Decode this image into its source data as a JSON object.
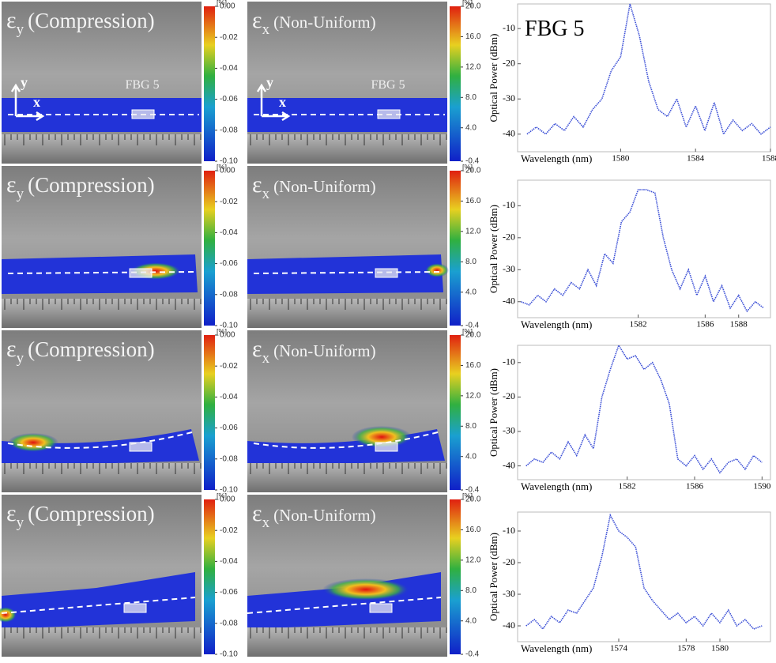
{
  "rows": [
    {
      "left": {
        "symbol": "ε",
        "subscript": "y",
        "label": "(Compression)",
        "fbg": "FBG 5",
        "axis_y": "y",
        "axis_x": "x",
        "colorbar": {
          "unit": "[%]",
          "ticks": [
            {
              "value": 0,
              "label": "0.00"
            },
            -0.02,
            -0.04,
            -0.06,
            -0.08,
            {
              "value": -0.1,
              "label": "-0.10"
            }
          ]
        }
      },
      "right": {
        "symbol": "ε",
        "subscript": "x",
        "label": "(Non-Uniform)",
        "fbg": "FBG 5",
        "axis_y": "y",
        "axis_x": "x",
        "colorbar": {
          "unit": "[%]",
          "ticks": [
            {
              "value": 20,
              "label": "20.0"
            },
            {
              "value": 16,
              "label": "16.0"
            },
            {
              "value": 12,
              "label": "12.0"
            },
            {
              "value": 8,
              "label": "8.0"
            },
            {
              "value": 4,
              "label": "4.0"
            },
            -0.4
          ]
        }
      }
    },
    {
      "left": {
        "symbol": "ε",
        "subscript": "y",
        "label": "(Compression)",
        "colorbar": {
          "unit": "[%]",
          "ticks": [
            {
              "value": 0,
              "label": "0.00"
            },
            -0.02,
            -0.04,
            -0.06,
            -0.08,
            {
              "value": -0.1,
              "label": "-0.10"
            }
          ]
        }
      },
      "right": {
        "symbol": "ε",
        "subscript": "x",
        "label": "(Non-Uniform)",
        "colorbar": {
          "unit": "[%]",
          "ticks": [
            {
              "value": 20,
              "label": "20.0"
            },
            {
              "value": 16,
              "label": "16.0"
            },
            {
              "value": 12,
              "label": "12.0"
            },
            {
              "value": 8,
              "label": "8.0"
            },
            {
              "value": 4,
              "label": "4.0"
            },
            -0.4
          ]
        }
      }
    },
    {
      "left": {
        "symbol": "ε",
        "subscript": "y",
        "label": "(Compression)",
        "colorbar": {
          "unit": "[%]",
          "ticks": [
            {
              "value": 0,
              "label": "0.00"
            },
            -0.02,
            -0.04,
            -0.06,
            -0.08,
            {
              "value": -0.1,
              "label": "-0.10"
            }
          ]
        }
      },
      "right": {
        "symbol": "ε",
        "subscript": "x",
        "label": "(Non-Uniform)",
        "colorbar": {
          "unit": "[%]",
          "ticks": [
            {
              "value": 20,
              "label": "20.0"
            },
            {
              "value": 16,
              "label": "16.0"
            },
            {
              "value": 12,
              "label": "12.0"
            },
            {
              "value": 8,
              "label": "8.0"
            },
            {
              "value": 4,
              "label": "4.0"
            },
            -0.4
          ]
        }
      }
    },
    {
      "left": {
        "symbol": "ε",
        "subscript": "y",
        "label": "(Compression)",
        "colorbar": {
          "unit": "[%]",
          "ticks": [
            {
              "value": 0,
              "label": "0.00"
            },
            -0.02,
            -0.04,
            -0.06,
            -0.08,
            {
              "value": -0.1,
              "label": "-0.10"
            }
          ]
        }
      },
      "right": {
        "symbol": "ε",
        "subscript": "x",
        "label": "(Non-Uniform)",
        "colorbar": {
          "unit": "[%]",
          "ticks": [
            {
              "value": 20,
              "label": "20.0"
            },
            {
              "value": 16,
              "label": "16.0"
            },
            {
              "value": 12,
              "label": "12.0"
            },
            {
              "value": 8,
              "label": "8.0"
            },
            {
              "value": 4,
              "label": "4.0"
            },
            -0.4
          ]
        }
      }
    }
  ],
  "chart_data": [
    {
      "type": "line",
      "title": "FBG 5",
      "x_label": "Wavelength (nm)",
      "y_label": "Optical Power (dBm)",
      "color": "#3b4fd6",
      "x": [
        1575,
        1575.5,
        1576,
        1576.5,
        1577,
        1577.5,
        1578,
        1578.5,
        1579,
        1579.5,
        1580,
        1580.5,
        1581,
        1581.5,
        1582,
        1582.5,
        1583,
        1583.5,
        1584,
        1584.5,
        1585,
        1585.5,
        1586,
        1586.5,
        1587,
        1587.5,
        1588
      ],
      "values": [
        -40,
        -38,
        -40,
        -37,
        -39,
        -35,
        -38,
        -33,
        -30,
        -22,
        -18,
        -3,
        -12,
        -25,
        -33,
        -35,
        -30,
        -38,
        -32,
        -39,
        -31,
        -40,
        -36,
        -39,
        -37,
        -40,
        -38
      ],
      "xlim": [
        1574.5,
        1588
      ],
      "xticks": [
        1580,
        1584,
        1588
      ],
      "ylim": [
        -45,
        -3
      ],
      "yticks": [
        -10,
        -20,
        -30,
        -40
      ]
    },
    {
      "type": "line",
      "x_label": "Wavelength (nm)",
      "y_label": "Optical Power (dBm)",
      "color": "#3b4fd6",
      "x": [
        1575,
        1575.5,
        1576,
        1576.5,
        1577,
        1577.5,
        1578,
        1578.5,
        1579,
        1579.5,
        1580,
        1580.5,
        1581,
        1581.5,
        1582,
        1582.5,
        1583,
        1583.5,
        1584,
        1584.5,
        1585,
        1585.5,
        1586,
        1586.5,
        1587,
        1587.5,
        1588,
        1588.5,
        1589,
        1589.5
      ],
      "values": [
        -40,
        -41,
        -38,
        -40,
        -36,
        -38,
        -34,
        -36,
        -30,
        -35,
        -25,
        -28,
        -15,
        -12,
        -5,
        -5,
        -6,
        -20,
        -30,
        -36,
        -30,
        -38,
        -32,
        -40,
        -35,
        -42,
        -38,
        -43,
        -40,
        -42
      ],
      "xlim": [
        1574.8,
        1589.9
      ],
      "xticks": [
        1582,
        1586,
        1588
      ],
      "ylim": [
        -45,
        -2
      ],
      "yticks": [
        -10,
        -20,
        -30,
        -40
      ]
    },
    {
      "type": "line",
      "x_label": "Wavelength (nm)",
      "y_label": "Optical Power (dBm)",
      "color": "#3b4fd6",
      "x": [
        1576,
        1576.5,
        1577,
        1577.5,
        1578,
        1578.5,
        1579,
        1579.5,
        1580,
        1580.5,
        1581,
        1581.5,
        1582,
        1582.5,
        1583,
        1583.5,
        1584,
        1584.5,
        1585,
        1585.5,
        1586,
        1586.5,
        1587,
        1587.5,
        1588,
        1588.5,
        1589,
        1589.5,
        1590
      ],
      "values": [
        -40,
        -38,
        -39,
        -36,
        -38,
        -33,
        -37,
        -31,
        -35,
        -20,
        -12,
        -5,
        -9,
        -8,
        -12,
        -10,
        -15,
        -22,
        -38,
        -40,
        -37,
        -41,
        -38,
        -42,
        -39,
        -38,
        -41,
        -37,
        -39
      ],
      "xlim": [
        1575.5,
        1590.5
      ],
      "xticks": [
        1582,
        1586,
        1590
      ],
      "ylim": [
        -44,
        -5
      ],
      "yticks": [
        -10,
        -20,
        -30,
        -40
      ]
    },
    {
      "type": "line",
      "x_label": "Wavelength (nm)",
      "y_label": "Optical Power (dBm)",
      "color": "#3b4fd6",
      "x": [
        1568.5,
        1569,
        1569.5,
        1570,
        1570.5,
        1571,
        1571.5,
        1572,
        1572.5,
        1573,
        1573.5,
        1574,
        1574.5,
        1575,
        1575.5,
        1576,
        1576.5,
        1577,
        1577.5,
        1578,
        1578.5,
        1579,
        1579.5,
        1580,
        1580.5,
        1581,
        1581.5,
        1582,
        1582.5
      ],
      "values": [
        -40,
        -38,
        -41,
        -37,
        -39,
        -35,
        -36,
        -32,
        -28,
        -18,
        -5,
        -10,
        -12,
        -15,
        -28,
        -32,
        -35,
        -38,
        -36,
        -39,
        -37,
        -40,
        -36,
        -39,
        -35,
        -40,
        -38,
        -41,
        -40
      ],
      "xlim": [
        1568,
        1583
      ],
      "xticks": [
        1574,
        1578,
        1580
      ],
      "ylim": [
        -45,
        -4
      ],
      "yticks": [
        -10,
        -20,
        -30,
        -40
      ]
    }
  ]
}
